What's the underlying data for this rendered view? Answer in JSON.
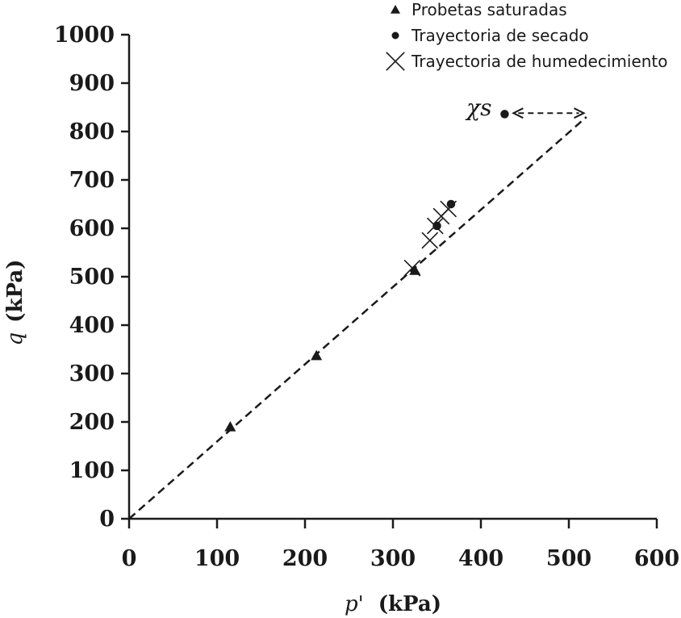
{
  "chart_data": {
    "type": "scatter",
    "xlabel": {
      "symbol": "p'",
      "unit": "(kPa)"
    },
    "ylabel": {
      "symbol": "q",
      "unit": "(kPa)"
    },
    "xlim": [
      0,
      600
    ],
    "ylim": [
      0,
      1000
    ],
    "x_ticks": [
      0,
      100,
      200,
      300,
      400,
      500,
      600
    ],
    "y_ticks": [
      0,
      100,
      200,
      300,
      400,
      500,
      600,
      700,
      800,
      900,
      1000
    ],
    "legend_position": "top-right",
    "grid": false,
    "series": [
      {
        "name": "Probetas saturadas",
        "marker": "triangle",
        "points": [
          {
            "x": 115,
            "y": 190
          },
          {
            "x": 213,
            "y": 337
          },
          {
            "x": 325,
            "y": 513
          }
        ]
      },
      {
        "name": "Trayectoria de secado",
        "marker": "circle",
        "points": [
          {
            "x": 350,
            "y": 605
          },
          {
            "x": 366,
            "y": 650
          },
          {
            "x": 427,
            "y": 836
          }
        ]
      },
      {
        "name": "Trayectoria de humedecimiento",
        "marker": "cross",
        "points": [
          {
            "x": 322,
            "y": 518
          },
          {
            "x": 342,
            "y": 575
          },
          {
            "x": 348,
            "y": 605
          },
          {
            "x": 355,
            "y": 625
          },
          {
            "x": 363,
            "y": 640
          }
        ]
      }
    ],
    "trend_line": {
      "style": "dashed",
      "from": {
        "x": 0,
        "y": 0
      },
      "to": {
        "x": 520,
        "y": 830
      }
    },
    "annotation": {
      "text": "χs",
      "arrow_from": {
        "x": 437,
        "y": 838
      },
      "arrow_to": {
        "x": 517,
        "y": 838
      },
      "anchor": {
        "x": 398,
        "y": 850
      }
    },
    "colors": {
      "ink": "#1a1a1a",
      "background": "#ffffff"
    }
  }
}
